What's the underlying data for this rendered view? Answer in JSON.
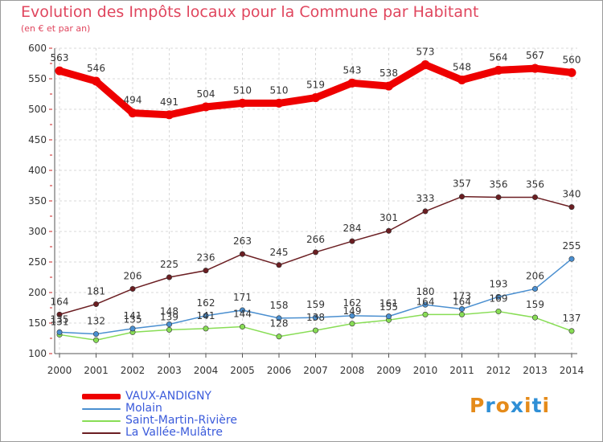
{
  "chart_data": {
    "type": "line",
    "title": "Evolution des Impôts locaux pour la Commune par Habitant",
    "subtitle": "(en € et par an)",
    "x": [
      "2000",
      "2001",
      "2002",
      "2003",
      "2004",
      "2005",
      "2006",
      "2007",
      "2008",
      "2009",
      "2010",
      "2011",
      "2012",
      "2013",
      "2014"
    ],
    "ylim": [
      100,
      600
    ],
    "yticks": [
      100,
      150,
      200,
      250,
      300,
      350,
      400,
      450,
      500,
      550,
      600
    ],
    "grid": true,
    "legend_position": "bottom-left",
    "series": [
      {
        "name": "VAUX-ANDIGNY",
        "color": "#ee0000",
        "values": [
          563,
          546,
          494,
          491,
          504,
          510,
          510,
          519,
          543,
          538,
          573,
          548,
          564,
          567,
          560
        ],
        "labels": [
          "563",
          "546",
          "494",
          "491",
          "504",
          "510",
          "510",
          "519",
          "543",
          "538",
          "573",
          "548",
          "564",
          "567",
          "560"
        ]
      },
      {
        "name": "Molain",
        "color": "#4a8fd0",
        "values": [
          135,
          132,
          141,
          148,
          162,
          171,
          158,
          159,
          162,
          161,
          180,
          173,
          193,
          206,
          255
        ],
        "labels": [
          "135",
          "132",
          "141",
          "148",
          "162",
          "171",
          "158",
          "159",
          "162",
          "161",
          "180",
          "173",
          "193",
          "206",
          "255"
        ]
      },
      {
        "name": "Saint-Martin-Rivière",
        "color": "#88dd55",
        "values": [
          131,
          122,
          135,
          139,
          141,
          144,
          128,
          138,
          149,
          155,
          164,
          164,
          169,
          159,
          137
        ],
        "labels": [
          "131",
          "",
          "135",
          "139",
          "141",
          "144",
          "128",
          "138",
          "149",
          "155",
          "164",
          "164",
          "169",
          "159",
          "137"
        ]
      },
      {
        "name": "La Vallée-Mulâtre",
        "color": "#6b1e22",
        "values": [
          164,
          181,
          206,
          225,
          236,
          263,
          245,
          266,
          284,
          301,
          333,
          357,
          356,
          356,
          340
        ],
        "labels": [
          "164",
          "181",
          "206",
          "225",
          "236",
          "263",
          "245",
          "266",
          "284",
          "301",
          "333",
          "357",
          "356",
          "356",
          "340"
        ]
      }
    ]
  },
  "legend": {
    "items": [
      {
        "label": "VAUX-ANDIGNY",
        "color": "#ee0000",
        "text_color": "#3b5bdb"
      },
      {
        "label": "Molain",
        "color": "#4a8fd0",
        "text_color": "#3b5bdb"
      },
      {
        "label": "Saint-Martin-Rivière",
        "color": "#88dd55",
        "text_color": "#3b5bdb"
      },
      {
        "label": "La Vallée-Mulâtre",
        "color": "#6b1e22",
        "text_color": "#3b5bdb"
      }
    ]
  },
  "logo": {
    "letters": [
      "P",
      "r",
      "o",
      "x",
      "i",
      "t",
      "i"
    ],
    "colors": [
      "#e58b1a",
      "#2f8fd6",
      "#e58b1a",
      "#2f8fd6",
      "#e58b1a",
      "#2f8fd6",
      "#e58b1a"
    ]
  }
}
